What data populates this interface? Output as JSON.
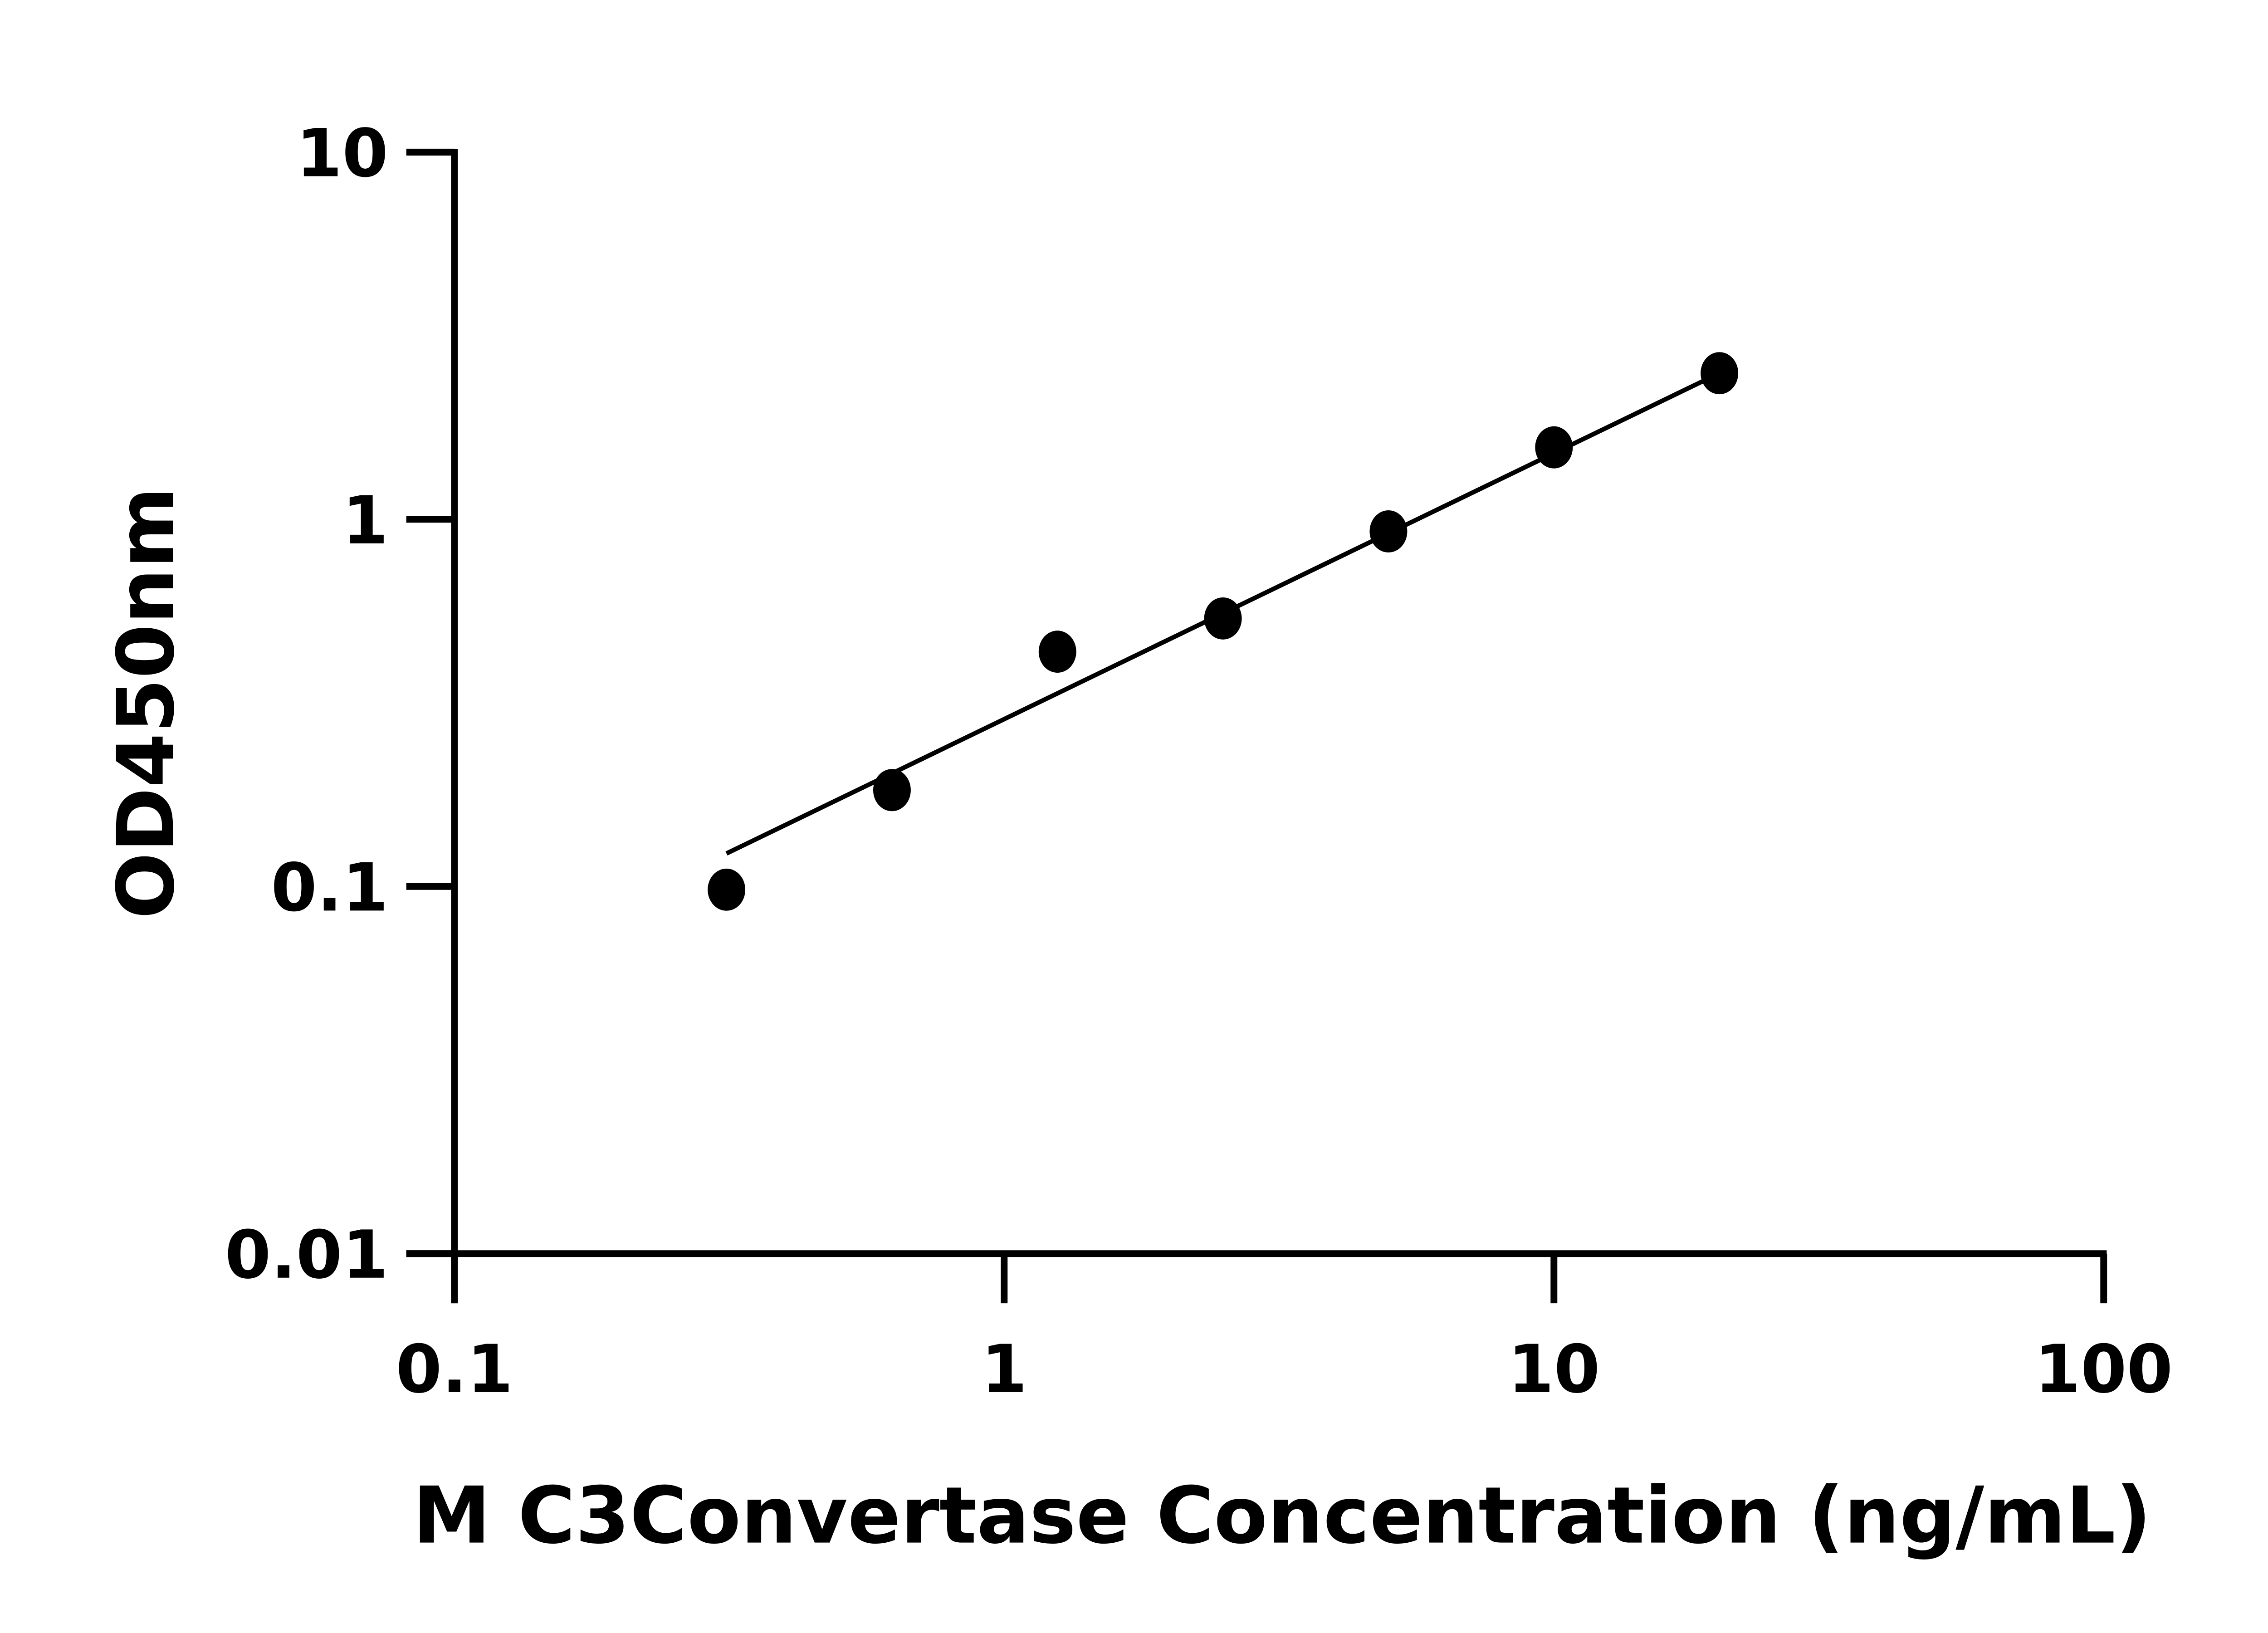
{
  "chart_data": {
    "type": "scatter",
    "title": "",
    "xlabel": "M C3Convertase Concentration (ng/mL)",
    "ylabel": "OD450nm",
    "x_scale": "log",
    "y_scale": "log",
    "xlim": [
      0.1,
      100
    ],
    "ylim": [
      0.01,
      10
    ],
    "x_ticks": [
      "0.1",
      "1",
      "10",
      "100"
    ],
    "y_ticks": [
      "0.01",
      "0.1",
      "1",
      "10"
    ],
    "grid": false,
    "points": {
      "x": [
        0.3125,
        0.625,
        1.25,
        2.5,
        5,
        10,
        20
      ],
      "y": [
        0.098,
        0.183,
        0.436,
        0.537,
        0.927,
        1.57,
        2.5
      ]
    },
    "fit_line": {
      "x": [
        0.3125,
        18.9
      ],
      "y": [
        0.123,
        2.4
      ]
    },
    "colors": {
      "points": "#000000",
      "line": "#000000",
      "axes": "#000000"
    }
  }
}
